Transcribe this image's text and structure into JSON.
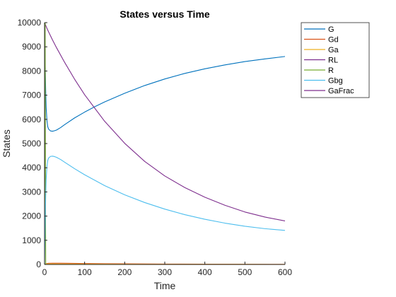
{
  "chart_data": {
    "type": "line",
    "title": "States versus Time",
    "xlabel": "Time",
    "ylabel": "States",
    "xlim": [
      0,
      600
    ],
    "ylim": [
      0,
      10000
    ],
    "xticks": [
      "0",
      "100",
      "200",
      "300",
      "400",
      "500",
      "600"
    ],
    "yticks": [
      "0",
      "1000",
      "2000",
      "3000",
      "4000",
      "5000",
      "6000",
      "7000",
      "8000",
      "9000",
      "10000"
    ],
    "grid": false,
    "legend_position": "top-right outside",
    "series": [
      {
        "name": "G",
        "color": "#0072BD",
        "x": [
          0,
          1,
          2,
          3,
          4,
          6,
          8,
          10,
          15,
          20,
          25,
          30,
          40,
          50,
          75,
          100,
          125,
          150,
          200,
          250,
          300,
          350,
          400,
          450,
          500,
          550,
          600
        ],
        "y": [
          10000,
          8900,
          7900,
          7100,
          6500,
          5950,
          5700,
          5600,
          5520,
          5510,
          5530,
          5560,
          5660,
          5780,
          6060,
          6300,
          6520,
          6720,
          7080,
          7400,
          7670,
          7900,
          8090,
          8250,
          8390,
          8500,
          8600
        ]
      },
      {
        "name": "Gd",
        "color": "#D95319",
        "x": [
          0,
          5,
          10,
          20,
          40,
          60,
          100,
          150,
          200,
          300,
          400,
          500,
          600
        ],
        "y": [
          0,
          35,
          50,
          55,
          52,
          48,
          40,
          32,
          26,
          18,
          12,
          8,
          5
        ]
      },
      {
        "name": "Ga",
        "color": "#EDB120",
        "x": [
          0,
          5,
          10,
          20,
          40,
          60,
          100,
          150,
          200,
          300,
          400,
          500,
          600
        ],
        "y": [
          0,
          20,
          25,
          25,
          22,
          20,
          16,
          12,
          10,
          7,
          5,
          4,
          3
        ]
      },
      {
        "name": "RL",
        "color": "#7E2F8E",
        "x": [
          0,
          5,
          10,
          20,
          30,
          50,
          75,
          100,
          150,
          200,
          250,
          300,
          350,
          400,
          450,
          500,
          550,
          600
        ],
        "y": [
          10000,
          9800,
          9620,
          9280,
          8960,
          8360,
          7660,
          7020,
          5920,
          5010,
          4260,
          3660,
          3180,
          2780,
          2450,
          2170,
          1960,
          1800
        ]
      },
      {
        "name": "R",
        "color": "#77AC30",
        "x": [
          0,
          0.5,
          1,
          1.5,
          2,
          2.5,
          3
        ],
        "y": [
          0,
          5000,
          9000,
          10000,
          6000,
          2000,
          0
        ]
      },
      {
        "name": "Gbg",
        "color": "#4DBEEE",
        "x": [
          0,
          1,
          2,
          3,
          4,
          6,
          8,
          10,
          15,
          20,
          25,
          30,
          40,
          50,
          75,
          100,
          150,
          200,
          250,
          300,
          350,
          400,
          450,
          500,
          550,
          600
        ],
        "y": [
          0,
          1100,
          2100,
          2900,
          3500,
          4050,
          4300,
          4400,
          4470,
          4480,
          4460,
          4430,
          4340,
          4230,
          3960,
          3710,
          3260,
          2880,
          2560,
          2290,
          2060,
          1870,
          1710,
          1580,
          1480,
          1410
        ]
      },
      {
        "name": "GaFrac",
        "color": "#7E2F8E",
        "x": [
          0,
          600
        ],
        "y": [
          0,
          0
        ]
      }
    ]
  }
}
